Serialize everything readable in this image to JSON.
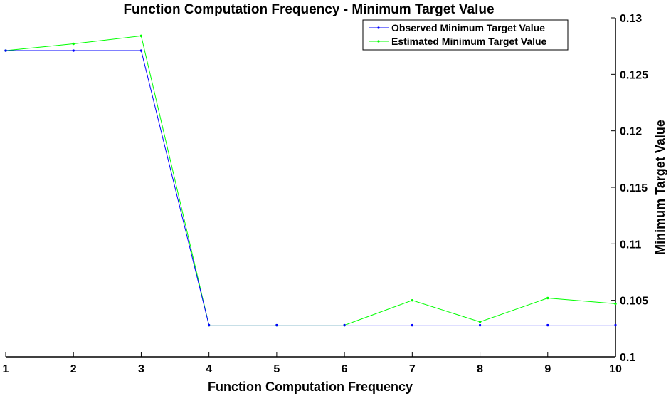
{
  "chart_data": {
    "type": "line",
    "title": "Function Computation Frequency - Minimum Target Value",
    "xlabel": "Function Computation Frequency",
    "ylabel": "Minimum Target Value",
    "x": [
      1,
      2,
      3,
      4,
      5,
      6,
      7,
      8,
      9,
      10
    ],
    "xlim": [
      1,
      10
    ],
    "ylim": [
      0.1,
      0.13
    ],
    "x_ticks": [
      "1",
      "2",
      "3",
      "4",
      "5",
      "6",
      "7",
      "8",
      "9",
      "10"
    ],
    "y_ticks": [
      "0.1",
      "0.105",
      "0.11",
      "0.115",
      "0.12",
      "0.125",
      "0.13"
    ],
    "y_tick_values": [
      0.1,
      0.105,
      0.11,
      0.115,
      0.12,
      0.125,
      0.13
    ],
    "y_axis_side": "right",
    "grid": false,
    "legend_position": "top-right",
    "series": [
      {
        "name": "Observed Minimum Target Value",
        "color": "#0000ff",
        "values": [
          0.1271,
          0.1271,
          0.1271,
          0.1028,
          0.1028,
          0.1028,
          0.1028,
          0.1028,
          0.1028,
          0.1028
        ]
      },
      {
        "name": "Estimated Minimum Target Value",
        "color": "#00ff00",
        "values": [
          0.1271,
          0.1277,
          0.1284,
          0.1028,
          0.1028,
          0.1028,
          0.105,
          0.1031,
          0.1052,
          0.1047
        ]
      }
    ]
  }
}
